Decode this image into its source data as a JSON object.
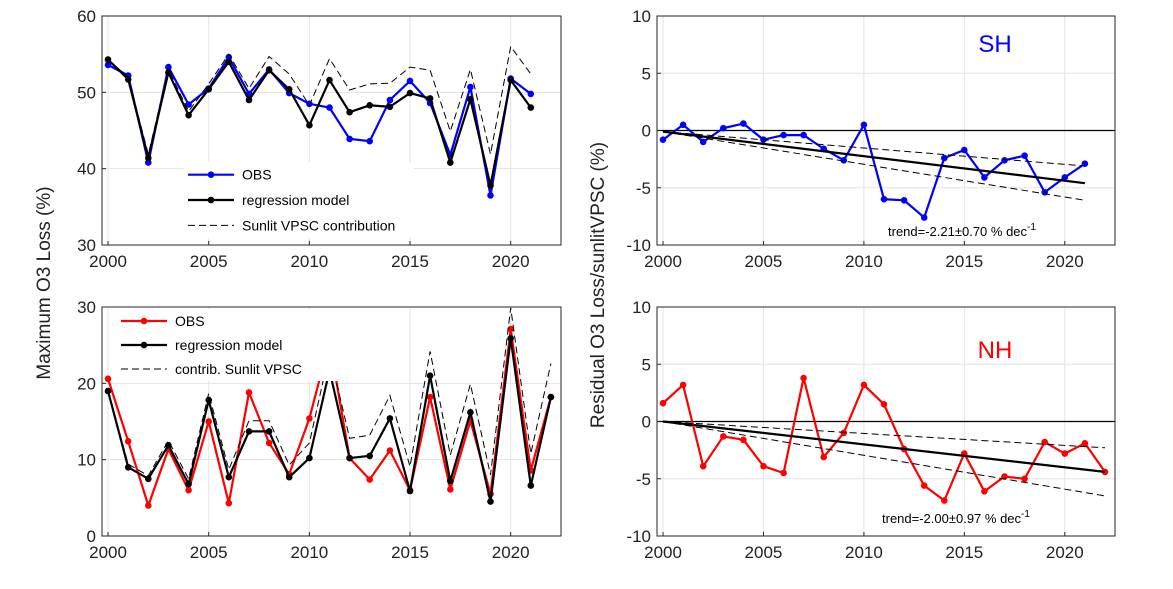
{
  "figure_text": {
    "ylabel_left": "Maximum O3 Loss (%)",
    "ylabel_right": "Residual O3 Loss/sunlitVPSC (%)"
  },
  "colors": {
    "obs_sh": "#0000ff",
    "obs_nh": "#ff0000",
    "model": "#000000",
    "grid": "#e3e3e3",
    "axis": "#262626"
  },
  "chart_data": [
    {
      "id": "sh-loss",
      "type": "line",
      "xlim": [
        1999.7,
        2022.5
      ],
      "ylim": [
        30,
        60
      ],
      "yticks": [
        30,
        40,
        50,
        60
      ],
      "xticks": [
        2000,
        2005,
        2010,
        2015,
        2020
      ],
      "grid": true,
      "legend": "center-left",
      "series": [
        {
          "name": "OBS",
          "style": "obs",
          "color": "#0000ff",
          "x": [
            2000,
            2001,
            2002,
            2003,
            2004,
            2005,
            2006,
            2007,
            2008,
            2009,
            2010,
            2011,
            2012,
            2013,
            2014,
            2015,
            2016,
            2017,
            2018,
            2019,
            2020,
            2021
          ],
          "values": [
            53.6,
            52.2,
            40.8,
            53.3,
            48.4,
            50.5,
            54.6,
            49.8,
            53.0,
            49.9,
            48.5,
            48.0,
            43.9,
            43.6,
            49.0,
            51.5,
            48.6,
            41.8,
            50.7,
            36.5,
            51.8,
            49.8
          ]
        },
        {
          "name": "regression model",
          "style": "model",
          "color": "#000000",
          "x": [
            2000,
            2001,
            2002,
            2003,
            2004,
            2005,
            2006,
            2007,
            2008,
            2009,
            2010,
            2011,
            2012,
            2013,
            2014,
            2015,
            2016,
            2017,
            2018,
            2019,
            2020,
            2021
          ],
          "values": [
            54.3,
            51.7,
            41.4,
            52.6,
            47.0,
            50.4,
            54.0,
            49.0,
            52.9,
            50.4,
            45.7,
            51.6,
            47.4,
            48.3,
            48.1,
            49.9,
            49.2,
            40.8,
            49.1,
            37.8,
            51.6,
            48.0
          ]
        },
        {
          "name": "Sunlit VPSC contribution",
          "style": "dashed",
          "color": "#000000",
          "x": [
            2000,
            2001,
            2002,
            2003,
            2004,
            2005,
            2006,
            2007,
            2008,
            2009,
            2010,
            2011,
            2012,
            2013,
            2014,
            2015,
            2016,
            2017,
            2018,
            2019,
            2020,
            2021
          ],
          "values": [
            54.3,
            52.0,
            41.9,
            53.0,
            47.5,
            51.1,
            55.0,
            50.5,
            54.7,
            52.4,
            48.3,
            54.4,
            50.3,
            51.1,
            51.2,
            53.3,
            52.9,
            44.9,
            53.0,
            41.9,
            56.0,
            52.4
          ]
        }
      ],
      "legend_entries": [
        "OBS",
        "regression model",
        "Sunlit VPSC contribution"
      ]
    },
    {
      "id": "sh-residual",
      "type": "line",
      "xlim": [
        1999.7,
        2022.5
      ],
      "ylim": [
        -10,
        10
      ],
      "yticks": [
        -10,
        -5,
        0,
        5,
        10
      ],
      "xticks": [
        2000,
        2005,
        2010,
        2015,
        2020
      ],
      "grid": true,
      "label": "SH",
      "label_color": "#0000ff",
      "annotation": "trend=-2.21±0.70 % dec",
      "annotation_sup": "-1",
      "series": [
        {
          "name": "OBS residual",
          "style": "obs",
          "color": "#0000ff",
          "x": [
            2000,
            2001,
            2002,
            2003,
            2004,
            2005,
            2006,
            2007,
            2008,
            2009,
            2010,
            2011,
            2012,
            2013,
            2014,
            2015,
            2016,
            2017,
            2018,
            2019,
            2020,
            2021
          ],
          "values": [
            -0.8,
            0.5,
            -1.0,
            0.2,
            0.6,
            -0.8,
            -0.4,
            -0.4,
            -1.6,
            -2.6,
            0.5,
            -6.0,
            -6.1,
            -7.6,
            -2.4,
            -1.7,
            -4.1,
            -2.6,
            -2.2,
            -5.4,
            -4.1,
            -2.9
          ]
        },
        {
          "name": "trend",
          "style": "trend",
          "color": "#000000",
          "x": [
            2000,
            2021
          ],
          "values": [
            -0.1,
            -4.6
          ]
        },
        {
          "name": "trend upper",
          "style": "dashed",
          "color": "#000000",
          "x": [
            2000,
            2021
          ],
          "values": [
            -0.1,
            -3.1
          ]
        },
        {
          "name": "trend lower",
          "style": "dashed",
          "color": "#000000",
          "x": [
            2000,
            2021
          ],
          "values": [
            -0.1,
            -6.1
          ]
        }
      ]
    },
    {
      "id": "nh-loss",
      "type": "line",
      "xlim": [
        1999.7,
        2022.5
      ],
      "ylim": [
        0,
        30
      ],
      "yticks": [
        0,
        10,
        20,
        30
      ],
      "xticks": [
        2000,
        2005,
        2010,
        2015,
        2020
      ],
      "grid": true,
      "legend": "top-left",
      "series": [
        {
          "name": "OBS",
          "style": "obs",
          "color": "#ff0000",
          "x": [
            2000,
            2001,
            2002,
            2003,
            2004,
            2005,
            2006,
            2007,
            2008,
            2009,
            2010,
            2011,
            2012,
            2013,
            2014,
            2015,
            2016,
            2017,
            2018,
            2019,
            2020,
            2021,
            2022
          ],
          "values": [
            20.6,
            12.4,
            4.0,
            11.4,
            6.0,
            15.0,
            4.3,
            18.8,
            12.2,
            8.1,
            15.4,
            25.5,
            10.2,
            7.4,
            11.2,
            6.0,
            18.2,
            6.1,
            15.1,
            5.5,
            27.1,
            8.6,
            18.2
          ]
        },
        {
          "name": "regression model",
          "style": "model",
          "color": "#000000",
          "x": [
            2000,
            2001,
            2002,
            2003,
            2004,
            2005,
            2006,
            2007,
            2008,
            2009,
            2010,
            2011,
            2012,
            2013,
            2014,
            2015,
            2016,
            2017,
            2018,
            2019,
            2020,
            2021,
            2022
          ],
          "values": [
            19.0,
            9.0,
            7.5,
            11.9,
            6.8,
            17.8,
            7.7,
            13.7,
            13.7,
            7.7,
            10.2,
            21.7,
            10.2,
            10.5,
            15.4,
            5.9,
            21.0,
            7.2,
            16.2,
            4.5,
            25.9,
            6.6,
            18.2
          ]
        },
        {
          "name": "contrib. Sunlit VPSC",
          "style": "dashed",
          "color": "#000000",
          "x": [
            2000,
            2001,
            2002,
            2003,
            2004,
            2005,
            2006,
            2007,
            2008,
            2009,
            2010,
            2011,
            2012,
            2013,
            2014,
            2015,
            2016,
            2017,
            2018,
            2019,
            2020,
            2021,
            2022
          ],
          "values": [
            19.1,
            9.4,
            7.9,
            12.5,
            7.5,
            18.7,
            8.7,
            15.1,
            15.1,
            9.3,
            12.2,
            24.1,
            12.8,
            13.2,
            18.4,
            9.1,
            24.2,
            10.6,
            19.9,
            8.0,
            29.9,
            10.8,
            22.6
          ]
        }
      ],
      "legend_entries": [
        "OBS",
        "regression model",
        "contrib. Sunlit VPSC"
      ]
    },
    {
      "id": "nh-residual",
      "type": "line",
      "xlim": [
        1999.7,
        2022.5
      ],
      "ylim": [
        -10,
        10
      ],
      "yticks": [
        -10,
        -5,
        0,
        5,
        10
      ],
      "xticks": [
        2000,
        2005,
        2010,
        2015,
        2020
      ],
      "grid": true,
      "label": "NH",
      "label_color": "#ff0000",
      "annotation": "trend=-2.00±0.97 % dec",
      "annotation_sup": "-1",
      "series": [
        {
          "name": "OBS residual",
          "style": "obs",
          "color": "#ff0000",
          "x": [
            2000,
            2001,
            2002,
            2003,
            2004,
            2005,
            2006,
            2007,
            2008,
            2009,
            2010,
            2011,
            2012,
            2013,
            2014,
            2015,
            2016,
            2017,
            2018,
            2019,
            2020,
            2021,
            2022
          ],
          "values": [
            1.6,
            3.2,
            -3.9,
            -1.3,
            -1.6,
            -3.9,
            -4.5,
            3.8,
            -3.1,
            -1.0,
            3.2,
            1.5,
            -2.4,
            -5.6,
            -6.9,
            -2.8,
            -6.1,
            -4.8,
            -5.0,
            -1.8,
            -2.8,
            -1.9,
            -4.4
          ]
        },
        {
          "name": "trend",
          "style": "trend",
          "color": "#000000",
          "x": [
            2000,
            2022
          ],
          "values": [
            0.0,
            -4.4
          ]
        },
        {
          "name": "trend upper",
          "style": "dashed",
          "color": "#000000",
          "x": [
            2000,
            2022
          ],
          "values": [
            0.0,
            -2.3
          ]
        },
        {
          "name": "trend lower",
          "style": "dashed",
          "color": "#000000",
          "x": [
            2000,
            2022
          ],
          "values": [
            0.0,
            -6.5
          ]
        }
      ]
    }
  ]
}
